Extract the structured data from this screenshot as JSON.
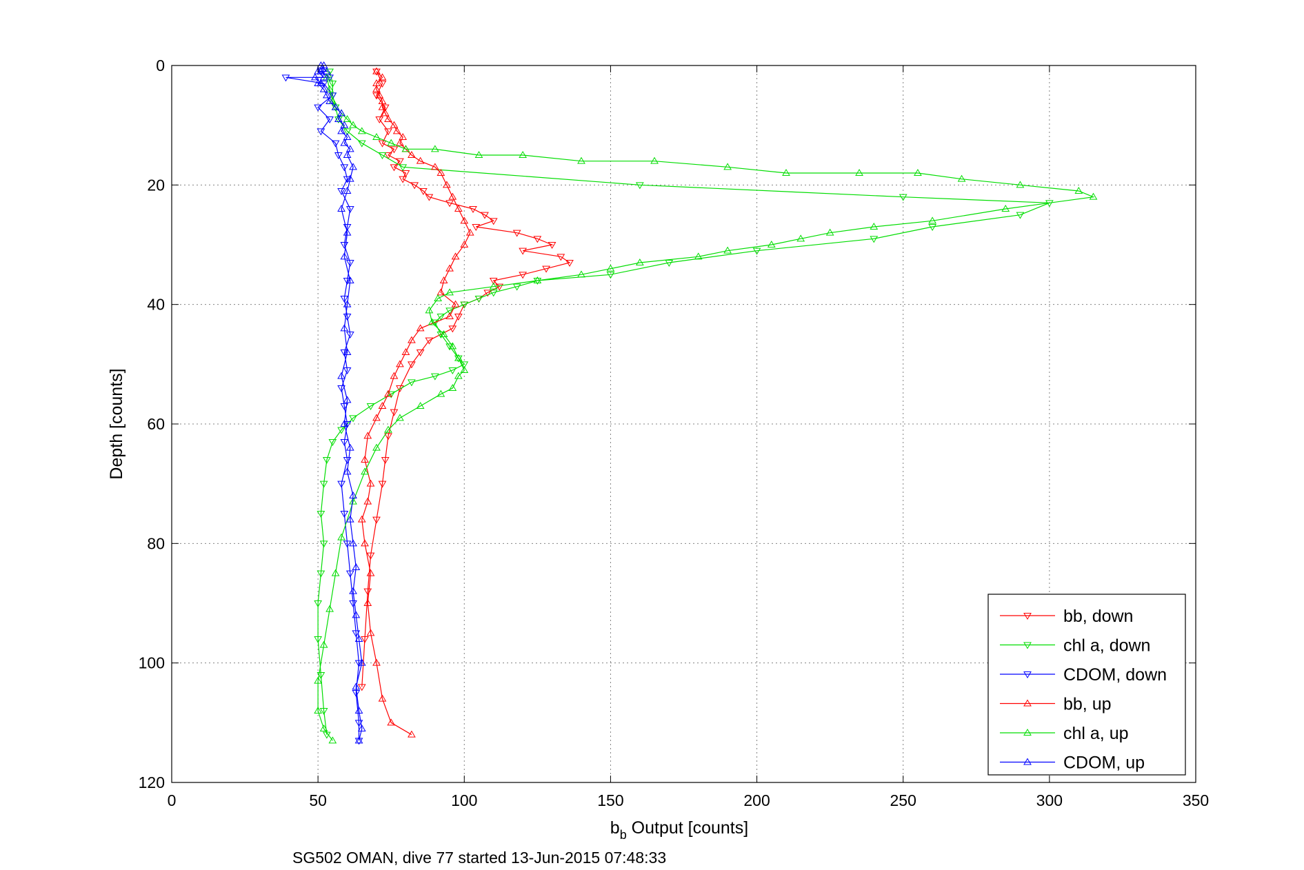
{
  "caption": "SG502 OMAN, dive 77 started 13-Jun-2015 07:48:33",
  "chart_data": {
    "type": "line",
    "xlabel_main": "b",
    "xlabel_sub": "b",
    "xlabel_rest": " Output [counts]",
    "ylabel": "Depth [counts]",
    "xlim": [
      0,
      350
    ],
    "ylim": [
      0,
      120
    ],
    "y_reversed": true,
    "grid": true,
    "legend_position": "bottom-right",
    "xticks": [
      0,
      50,
      100,
      150,
      200,
      250,
      300,
      350
    ],
    "yticks": [
      0,
      20,
      40,
      60,
      80,
      100,
      120
    ],
    "series": [
      {
        "name": "bb, down",
        "color": "#ff0000",
        "marker": "triangle-down",
        "line": true,
        "x": [
          70,
          72,
          70,
          73,
          71,
          74,
          72,
          76,
          74,
          78,
          76,
          80,
          79,
          83,
          86,
          88,
          95,
          103,
          107,
          110,
          104,
          118,
          125,
          130,
          120,
          133,
          136,
          128,
          120,
          110,
          112,
          108,
          105,
          100,
          98,
          96,
          88,
          85,
          82,
          78,
          76,
          74,
          73,
          72,
          70,
          68,
          67,
          66,
          65
        ],
        "y": [
          1,
          3,
          5,
          7,
          9,
          11,
          13,
          14,
          15,
          16,
          17,
          18,
          19,
          20,
          21,
          22,
          23,
          24,
          25,
          26,
          27,
          28,
          29,
          30,
          31,
          32,
          33,
          34,
          35,
          36,
          37,
          38,
          39,
          40,
          42,
          44,
          46,
          48,
          50,
          54,
          58,
          62,
          66,
          70,
          76,
          82,
          88,
          96,
          104
        ]
      },
      {
        "name": "chl a, down",
        "color": "#00dd00",
        "marker": "triangle-down",
        "line": true,
        "x": [
          54,
          55,
          55,
          56,
          57,
          60,
          65,
          72,
          79,
          160,
          250,
          300,
          290,
          260,
          240,
          200,
          170,
          150,
          125,
          118,
          110,
          105,
          100,
          95,
          92,
          90,
          92,
          95,
          98,
          100,
          96,
          90,
          82,
          75,
          68,
          62,
          58,
          55,
          53,
          52,
          51,
          52,
          51,
          50,
          50,
          51,
          52,
          53
        ],
        "y": [
          1,
          3,
          5,
          7,
          9,
          11,
          13,
          15,
          17,
          20,
          22,
          23,
          25,
          27,
          29,
          31,
          33,
          35,
          36,
          37,
          38,
          39,
          40,
          41,
          42,
          43,
          45,
          47,
          49,
          50,
          51,
          52,
          53,
          55,
          57,
          59,
          61,
          63,
          66,
          70,
          75,
          80,
          85,
          90,
          96,
          102,
          108,
          112
        ]
      },
      {
        "name": "CDOM, down",
        "color": "#0000ff",
        "marker": "triangle-down",
        "line": true,
        "x": [
          51,
          54,
          39,
          52,
          55,
          50,
          54,
          51,
          56,
          57,
          59,
          60,
          58,
          61,
          60,
          59,
          61,
          60,
          59,
          60,
          61,
          59,
          60,
          58,
          59,
          60,
          59,
          60,
          58,
          59,
          60,
          61,
          62,
          63,
          64,
          63,
          64,
          64
        ],
        "y": [
          1,
          2,
          2,
          3,
          5,
          7,
          9,
          11,
          13,
          15,
          17,
          19,
          21,
          24,
          27,
          30,
          33,
          36,
          39,
          42,
          45,
          48,
          51,
          54,
          57,
          60,
          63,
          66,
          70,
          75,
          80,
          85,
          90,
          95,
          100,
          105,
          110,
          113
        ]
      },
      {
        "name": "bb, up",
        "color": "#ff0000",
        "marker": "triangle-up",
        "line": true,
        "x": [
          82,
          75,
          72,
          70,
          68,
          67,
          68,
          66,
          65,
          67,
          68,
          66,
          67,
          70,
          72,
          74,
          76,
          78,
          80,
          82,
          85,
          95,
          97,
          92,
          93,
          95,
          97,
          100,
          102,
          100,
          98,
          96,
          94,
          92,
          90,
          85,
          82,
          80,
          78,
          79,
          77,
          76,
          74,
          73,
          72,
          72,
          71,
          70,
          70,
          72,
          70
        ],
        "y": [
          112,
          110,
          106,
          100,
          95,
          90,
          85,
          80,
          76,
          73,
          70,
          66,
          62,
          59,
          57,
          55,
          52,
          50,
          48,
          46,
          44,
          42,
          40,
          38,
          36,
          34,
          32,
          30,
          28,
          26,
          24,
          22,
          20,
          18,
          17,
          16,
          15,
          14,
          13,
          12,
          11,
          10,
          9,
          8,
          7,
          6,
          5,
          4,
          3,
          2,
          1
        ]
      },
      {
        "name": "chl a, up",
        "color": "#00dd00",
        "marker": "triangle-up",
        "line": true,
        "x": [
          55,
          52,
          50,
          50,
          52,
          54,
          56,
          58,
          62,
          66,
          70,
          74,
          78,
          85,
          92,
          96,
          98,
          100,
          98,
          96,
          93,
          89,
          88,
          91,
          95,
          110,
          125,
          140,
          150,
          160,
          180,
          190,
          205,
          215,
          225,
          240,
          260,
          285,
          315,
          310,
          290,
          270,
          255,
          235,
          210,
          190,
          165,
          140,
          120,
          105,
          90,
          80,
          75,
          70,
          65,
          62,
          60,
          58,
          56,
          55,
          54,
          53
        ],
        "y": [
          113,
          111,
          108,
          103,
          97,
          91,
          85,
          79,
          73,
          68,
          64,
          61,
          59,
          57,
          55,
          54,
          52,
          51,
          49,
          47,
          45,
          43,
          41,
          39,
          38,
          37,
          36,
          35,
          34,
          33,
          32,
          31,
          30,
          29,
          28,
          27,
          26,
          24,
          22,
          21,
          20,
          19,
          18,
          18,
          18,
          17,
          16,
          16,
          15,
          15,
          14,
          14,
          13,
          12,
          11,
          10,
          9,
          8,
          7,
          6,
          4,
          2
        ]
      },
      {
        "name": "CDOM, up",
        "color": "#0000ff",
        "marker": "triangle-up",
        "line": true,
        "x": [
          64,
          65,
          64,
          63,
          65,
          64,
          63,
          62,
          63,
          62,
          61,
          62,
          60,
          61,
          59,
          60,
          58,
          60,
          59,
          60,
          61,
          59,
          60,
          58,
          60,
          61,
          62,
          60,
          61,
          59,
          60,
          58,
          59,
          57,
          58,
          56,
          54,
          53,
          52,
          50,
          51,
          49,
          52,
          50,
          53,
          51,
          52,
          51
        ],
        "y": [
          113,
          111,
          108,
          104,
          100,
          96,
          92,
          88,
          84,
          80,
          76,
          72,
          68,
          64,
          60,
          56,
          52,
          48,
          44,
          40,
          36,
          32,
          28,
          24,
          21,
          19,
          17,
          15,
          14,
          13,
          12,
          11,
          10,
          9,
          8,
          7,
          6,
          5,
          4,
          3,
          3,
          2,
          2,
          1,
          1,
          0,
          0,
          1
        ]
      }
    ]
  }
}
